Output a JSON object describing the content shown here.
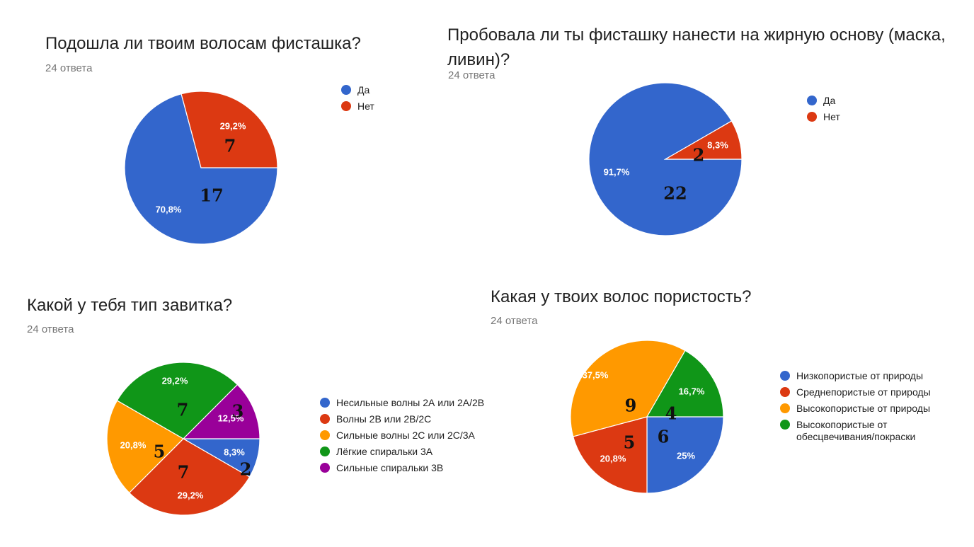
{
  "colors": {
    "blue": "#3366cc",
    "red": "#dc3912",
    "orange": "#ff9900",
    "green": "#109618",
    "purple": "#990099"
  },
  "chart_data": [
    {
      "type": "pie",
      "title": "Подошла ли твоим волосам фисташка?",
      "subtitle": "24 ответа",
      "categories": [
        "Да",
        "Нет"
      ],
      "values": [
        17,
        7
      ],
      "percent_labels": [
        "70,8%",
        "29,2%"
      ],
      "annotations": [
        "17",
        "7"
      ],
      "colors": [
        "#3366cc",
        "#dc3912"
      ],
      "legend": "right"
    },
    {
      "type": "pie",
      "title": "Пробовала ли ты фисташку нанести на жирную основу (маска, ливин)?",
      "title_lines": [
        "Пробовала ли ты фисташку нанести на жирную основу (маска,",
        "ливин)?"
      ],
      "subtitle": "24 ответа",
      "categories": [
        "Да",
        "Нет"
      ],
      "values": [
        22,
        2
      ],
      "percent_labels": [
        "91,7%",
        "8,3%"
      ],
      "annotations": [
        "22",
        "2"
      ],
      "colors": [
        "#3366cc",
        "#dc3912"
      ],
      "legend": "right"
    },
    {
      "type": "pie",
      "title": "Какой у тебя тип завитка?",
      "subtitle": "24 ответа",
      "categories": [
        "Несильные волны 2А или 2А/2В",
        "Волны 2В или 2В/2С",
        "Сильные волны 2С или 2С/3А",
        "Лёгкие спиральки 3А",
        "Сильные спиральки 3В"
      ],
      "values": [
        2,
        7,
        5,
        7,
        3
      ],
      "percent_labels": [
        "8,3%",
        "29,2%",
        "20,8%",
        "29,2%",
        "12,5%"
      ],
      "annotations": [
        "2",
        "7",
        "5",
        "7",
        "3"
      ],
      "colors": [
        "#3366cc",
        "#dc3912",
        "#ff9900",
        "#109618",
        "#990099"
      ],
      "legend": "right"
    },
    {
      "type": "pie",
      "title": "Какая у твоих волос пористость?",
      "subtitle": "24 ответа",
      "categories": [
        "Низкопористые от природы",
        "Среднепористые от природы",
        "Высокопористые от природы",
        "Высокопористые от обесцвечивания/покраски"
      ],
      "legend_lines": [
        [
          "Низкопористые от природы"
        ],
        [
          "Среднепористые от природы"
        ],
        [
          "Высокопористые от природы"
        ],
        [
          "Высокопористые от",
          "обесцвечивания/покраски"
        ]
      ],
      "values": [
        6,
        5,
        9,
        4
      ],
      "percent_labels": [
        "25%",
        "20,8%",
        "37,5%",
        "16,7%"
      ],
      "annotations": [
        "6",
        "5",
        "9",
        "4"
      ],
      "colors": [
        "#3366cc",
        "#dc3912",
        "#ff9900",
        "#109618"
      ],
      "legend": "right"
    }
  ]
}
